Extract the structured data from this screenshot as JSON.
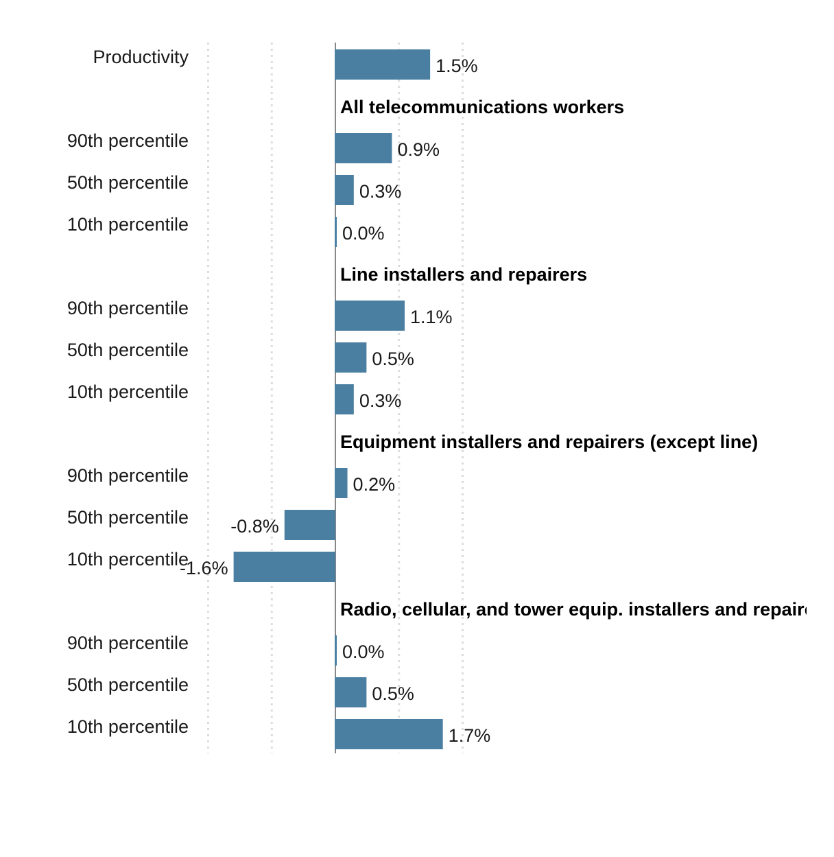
{
  "chart_data": {
    "type": "bar",
    "orientation": "horizontal",
    "unit": "%",
    "xlim": [
      -2.0,
      2.0
    ],
    "gridlines": [
      -2.0,
      -1.0,
      1.0,
      2.0
    ],
    "grid": true,
    "grid_style": "dotted",
    "bar_color": "#4a7fa2",
    "rows": [
      {
        "kind": "bar",
        "label": "Productivity",
        "value": 1.5,
        "value_label": "1.5%"
      },
      {
        "kind": "header",
        "label": "All telecommunications workers"
      },
      {
        "kind": "bar",
        "label": "90th percentile",
        "value": 0.9,
        "value_label": "0.9%"
      },
      {
        "kind": "bar",
        "label": "50th percentile",
        "value": 0.3,
        "value_label": "0.3%"
      },
      {
        "kind": "bar",
        "label": "10th percentile",
        "value": 0.0,
        "value_label": "0.0%"
      },
      {
        "kind": "header",
        "label": "Line installers and repairers"
      },
      {
        "kind": "bar",
        "label": "90th percentile",
        "value": 1.1,
        "value_label": "1.1%"
      },
      {
        "kind": "bar",
        "label": "50th percentile",
        "value": 0.5,
        "value_label": "0.5%"
      },
      {
        "kind": "bar",
        "label": "10th percentile",
        "value": 0.3,
        "value_label": "0.3%"
      },
      {
        "kind": "header",
        "label": "Equipment installers and repairers (except line)"
      },
      {
        "kind": "bar",
        "label": "90th percentile",
        "value": 0.2,
        "value_label": "0.2%"
      },
      {
        "kind": "bar",
        "label": "50th percentile",
        "value": -0.8,
        "value_label": "-0.8%"
      },
      {
        "kind": "bar",
        "label": "10th percentile",
        "value": -1.6,
        "value_label": "-1.6%"
      },
      {
        "kind": "header",
        "label": "Radio, cellular, and tower equip. installers and repairers"
      },
      {
        "kind": "bar",
        "label": "90th percentile",
        "value": 0.0,
        "value_label": "0.0%"
      },
      {
        "kind": "bar",
        "label": "50th percentile",
        "value": 0.5,
        "value_label": "0.5%"
      },
      {
        "kind": "bar",
        "label": "10th percentile",
        "value": 1.7,
        "value_label": "1.7%"
      }
    ]
  }
}
